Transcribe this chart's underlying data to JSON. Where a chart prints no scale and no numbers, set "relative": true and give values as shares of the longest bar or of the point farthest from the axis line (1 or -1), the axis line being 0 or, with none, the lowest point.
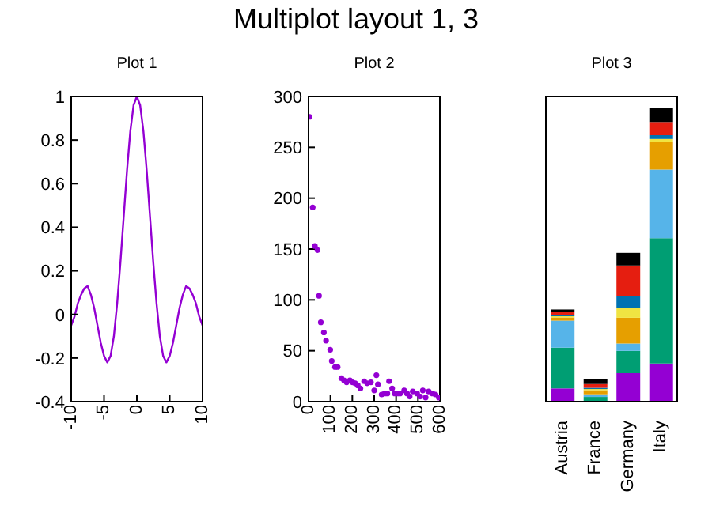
{
  "chart_data": [
    {
      "type": "line",
      "title": "Plot 1",
      "annotations": [
        "Multiplot layout 1, 3"
      ],
      "marker": "none",
      "line_style": "solid",
      "x": [
        -10,
        -9.5,
        -9,
        -8.5,
        -8,
        -7.5,
        -7,
        -6.5,
        -6,
        -5.5,
        -5,
        -4.5,
        -4,
        -3.5,
        -3,
        -2.5,
        -2,
        -1.5,
        -1,
        -0.5,
        0,
        0.5,
        1,
        1.5,
        2,
        2.5,
        3,
        3.5,
        4,
        4.5,
        5,
        5.5,
        6,
        6.5,
        7,
        7.5,
        8,
        8.5,
        9,
        9.5,
        10
      ],
      "series": [
        {
          "color": "#9400d3",
          "values": [
            -0.05,
            -0.01,
            0.05,
            0.09,
            0.12,
            0.13,
            0.09,
            0.03,
            -0.05,
            -0.13,
            -0.19,
            -0.22,
            -0.19,
            -0.1,
            0.05,
            0.24,
            0.45,
            0.66,
            0.84,
            0.96,
            1,
            0.96,
            0.84,
            0.66,
            0.45,
            0.24,
            0.05,
            -0.1,
            -0.19,
            -0.22,
            -0.19,
            -0.13,
            -0.05,
            0.03,
            0.09,
            0.13,
            0.12,
            0.09,
            0.05,
            -0.01,
            -0.05
          ]
        }
      ],
      "xlim": [
        -10,
        10
      ],
      "xticks": [
        -10,
        -5,
        0,
        5,
        10
      ],
      "ylim": [
        -0.4,
        1
      ],
      "yticks": [
        -0.4,
        -0.2,
        0,
        0.2,
        0.4,
        0.6,
        0.8,
        1
      ]
    },
    {
      "type": "scatter",
      "title": "Plot 2",
      "marker": "circle",
      "x": [
        5,
        19,
        29,
        41,
        48,
        56,
        70,
        80,
        99,
        106,
        121,
        133,
        150,
        162,
        174,
        189,
        201,
        213,
        225,
        237,
        254,
        268,
        285,
        300,
        310,
        317,
        334,
        348,
        360,
        368,
        382,
        394,
        406,
        418,
        437,
        450,
        462,
        476,
        496,
        510,
        522,
        535,
        549,
        566,
        580,
        595
      ],
      "series": [
        {
          "color": "#9400d3",
          "values": [
            280,
            191,
            153,
            149,
            104,
            78,
            68,
            60,
            51,
            40,
            34,
            34,
            23,
            21,
            19,
            21,
            19,
            18,
            16,
            13,
            20,
            18,
            19,
            11,
            26,
            17,
            7,
            8,
            8,
            20,
            13,
            8,
            8,
            8,
            11,
            8,
            5,
            10,
            8,
            5,
            11,
            4,
            10,
            8,
            7,
            4
          ]
        }
      ],
      "xlim": [
        0,
        600
      ],
      "xticks": [
        0,
        100,
        200,
        300,
        400,
        500,
        600
      ],
      "ylim": [
        0,
        300
      ],
      "yticks": [
        0,
        50,
        100,
        150,
        200,
        250,
        300
      ]
    },
    {
      "type": "bar",
      "title": "Plot 3",
      "stacked": true,
      "relative": true,
      "categories": [
        "Austria",
        "France",
        "Germany",
        "Italy"
      ],
      "series": [
        {
          "color": "#9400d3",
          "values": [
            0.045,
            null,
            0.097,
            0.13
          ]
        },
        {
          "color": "#009e73",
          "values": [
            0.139,
            0.016,
            0.076,
            0.427
          ]
        },
        {
          "color": "#56b4e9",
          "values": [
            0.092,
            0.009,
            0.025,
            0.234
          ]
        },
        {
          "color": "#e69f00",
          "values": [
            0.011,
            0.014,
            0.088,
            0.095
          ]
        },
        {
          "color": "#f0e442",
          "values": [
            0.004,
            0.004,
            0.032,
            0.009
          ]
        },
        {
          "color": "#0072b2",
          "values": [
            0.005,
            0.004,
            0.043,
            0.013
          ]
        },
        {
          "color": "#e51e10",
          "values": [
            0.009,
            0.013,
            0.103,
            0.045
          ]
        },
        {
          "color": "#000000",
          "values": [
            0.009,
            0.016,
            0.043,
            0.047
          ]
        }
      ]
    }
  ]
}
